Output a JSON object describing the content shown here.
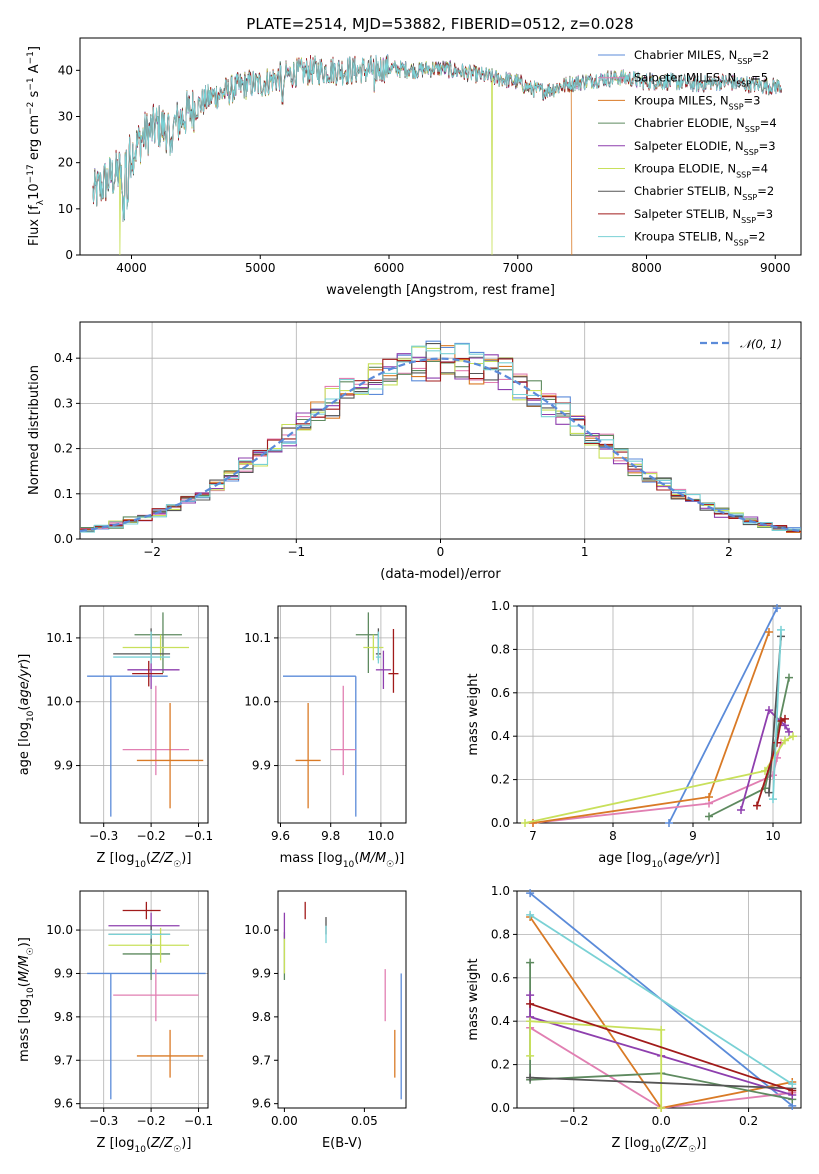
{
  "figure_title": "PLATE=2514, MJD=53882, FIBERID=0512, z=0.028",
  "colors": {
    "Chabrier MILES": "#5b8bd9",
    "Salpeter MILES": "#e17fb2",
    "Kroupa MILES": "#d97a26",
    "Chabrier ELODIE": "#5e8a5f",
    "Salpeter ELODIE": "#8e3fae",
    "Kroupa ELODIE": "#c8e05b",
    "Chabrier STELIB": "#555555",
    "Salpeter STELIB": "#a11b1b",
    "Kroupa STELIB": "#7ad1d5"
  },
  "chart_data": [
    {
      "id": "spectrum",
      "type": "line",
      "title": "PLATE=2514, MJD=53882, FIBERID=0512, z=0.028",
      "xlabel": "wavelength [Angstrom, rest frame]",
      "ylabel": "Flux [f_λ 10^-17 erg cm^-2 s^-1 A^-1]",
      "xlim": [
        3600,
        9200
      ],
      "ylim": [
        0,
        47
      ],
      "xticks": [
        4000,
        5000,
        6000,
        7000,
        8000,
        9000
      ],
      "yticks": [
        0,
        10,
        20,
        30,
        40
      ],
      "grid": false,
      "legend_position": "top-right",
      "continuum": {
        "x": [
          3700,
          3800,
          3900,
          4000,
          4100,
          4200,
          4300,
          4400,
          4500,
          4600,
          4700,
          4800,
          4900,
          5000,
          5200,
          5400,
          5600,
          5800,
          6000,
          6200,
          6400,
          6600,
          6800,
          7000,
          7100,
          7200,
          7400,
          7600,
          7800,
          8000,
          8200,
          8400,
          8600,
          8800,
          9000
        ],
        "y": [
          13,
          16,
          18,
          22,
          26,
          28,
          27,
          30,
          32,
          34,
          35,
          36,
          37,
          37,
          39,
          40,
          40,
          40,
          40.5,
          40,
          40.5,
          39.5,
          38.5,
          37.5,
          36,
          35.5,
          37,
          38,
          38.5,
          37.5,
          37.5,
          37,
          37.5,
          37,
          36.5
        ]
      },
      "series": [
        {
          "name": "Chabrier MILES, N_SSP=2",
          "label_main": "Chabrier MILES, N",
          "label_sub": "SSP",
          "label_end": "=2"
        },
        {
          "name": "Salpeter MILES, N_SSP=5",
          "label_main": "Salpeter MILES, N",
          "label_sub": "SSP",
          "label_end": "=5"
        },
        {
          "name": "Kroupa MILES, N_SSP=3",
          "label_main": "Kroupa MILES, N",
          "label_sub": "SSP",
          "label_end": "=3"
        },
        {
          "name": "Chabrier ELODIE, N_SSP=4",
          "label_main": "Chabrier ELODIE, N",
          "label_sub": "SSP",
          "label_end": "=4"
        },
        {
          "name": "Salpeter ELODIE, N_SSP=3",
          "label_main": "Salpeter ELODIE, N",
          "label_sub": "SSP",
          "label_end": "=3"
        },
        {
          "name": "Kroupa ELODIE, N_SSP=4",
          "label_main": "Kroupa ELODIE, N",
          "label_sub": "SSP",
          "label_end": "=4"
        },
        {
          "name": "Chabrier STELIB, N_SSP=2",
          "label_main": "Chabrier STELIB, N",
          "label_sub": "SSP",
          "label_end": "=2"
        },
        {
          "name": "Salpeter STELIB, N_SSP=3",
          "label_main": "Salpeter STELIB, N",
          "label_sub": "SSP",
          "label_end": "=3"
        },
        {
          "name": "Kroupa STELIB, N_SSP=2",
          "label_main": "Kroupa STELIB, N",
          "label_sub": "SSP",
          "label_end": "=2"
        }
      ],
      "dropouts": [
        {
          "model": "Kroupa ELODIE",
          "x": 3910
        },
        {
          "model": "Kroupa ELODIE",
          "x": 6800
        },
        {
          "model": "Kroupa MILES",
          "x": 7420
        }
      ]
    },
    {
      "id": "residuals",
      "type": "bar",
      "xlabel": "(data-model)/error",
      "ylabel": "Normed distribution",
      "xlim": [
        -2.5,
        2.5
      ],
      "ylim": [
        0,
        0.48
      ],
      "xticks": [
        -2,
        -1,
        0,
        1,
        2
      ],
      "yticks": [
        0.0,
        0.1,
        0.2,
        0.3,
        0.4
      ],
      "grid": true,
      "legend_position": "top-right",
      "reference": {
        "name": "𝒩(0, 1)",
        "mean": 0,
        "sigma": 1,
        "style": "dashed",
        "color": "#5b8bd9"
      },
      "bin_width": 0.1,
      "bin_start": -2.5
    },
    {
      "id": "age_vs_Z",
      "type": "scatter",
      "xlabel": "Z [log10(Z/Z☉)]",
      "ylabel": "age [log10(age/yr)]",
      "xlim": [
        -0.35,
        -0.08
      ],
      "ylim": [
        9.81,
        10.15
      ],
      "xticks": [
        -0.3,
        -0.2,
        -0.1
      ],
      "yticks": [
        9.9,
        10.0,
        10.1
      ],
      "grid": true,
      "points": [
        {
          "model": "Chabrier MILES",
          "x": -0.285,
          "y": 10.04,
          "xerr": [
            0.05,
            0.12
          ],
          "yerr": [
            0.22,
            0.0
          ]
        },
        {
          "model": "Salpeter MILES",
          "x": -0.19,
          "y": 9.925,
          "xerr": [
            0.07,
            0.07
          ],
          "yerr": [
            0.04,
            0.1
          ]
        },
        {
          "model": "Kroupa MILES",
          "x": -0.16,
          "y": 9.908,
          "xerr": [
            0.07,
            0.07
          ],
          "yerr": [
            0.075,
            0.09
          ]
        },
        {
          "model": "Chabrier ELODIE",
          "x": -0.175,
          "y": 10.105,
          "xerr": [
            0.06,
            0.04
          ],
          "yerr": [
            0.06,
            0.035
          ]
        },
        {
          "model": "Salpeter ELODIE",
          "x": -0.2,
          "y": 10.05,
          "xerr": [
            0.05,
            0.06
          ],
          "yerr": [
            0.03,
            0.03
          ]
        },
        {
          "model": "Kroupa ELODIE",
          "x": -0.18,
          "y": 10.085,
          "xerr": [
            0.08,
            0.06
          ],
          "yerr": [
            0.02,
            0.02
          ]
        },
        {
          "model": "Chabrier STELIB",
          "x": -0.2,
          "y": 10.075,
          "xerr": [
            0.08,
            0.04
          ],
          "yerr": [
            0.01,
            0.04
          ]
        },
        {
          "model": "Salpeter STELIB",
          "x": -0.205,
          "y": 10.044,
          "xerr": [
            0.035,
            0.03
          ],
          "yerr": [
            0.02,
            0.02
          ]
        },
        {
          "model": "Kroupa STELIB",
          "x": -0.2,
          "y": 10.07,
          "xerr": [
            0.08,
            0.04
          ],
          "yerr": [
            0.01,
            0.04
          ]
        }
      ]
    },
    {
      "id": "age_vs_mass",
      "type": "scatter",
      "xlabel": "mass [log10(M/M☉)]",
      "ylabel": "",
      "xlim": [
        9.59,
        10.1
      ],
      "ylim": [
        9.81,
        10.15
      ],
      "xticks": [
        9.6,
        9.8,
        10.0
      ],
      "yticks": [
        9.9,
        10.0,
        10.1
      ],
      "grid": true,
      "points": [
        {
          "model": "Chabrier MILES",
          "x": 9.9,
          "y": 10.04,
          "xerr": [
            0.29,
            0.0
          ],
          "yerr": [
            0.22,
            0.0
          ]
        },
        {
          "model": "Salpeter MILES",
          "x": 9.85,
          "y": 9.925,
          "xerr": [
            0.05,
            0.05
          ],
          "yerr": [
            0.04,
            0.1
          ]
        },
        {
          "model": "Kroupa MILES",
          "x": 9.71,
          "y": 9.908,
          "xerr": [
            0.05,
            0.05
          ],
          "yerr": [
            0.075,
            0.09
          ]
        },
        {
          "model": "Chabrier ELODIE",
          "x": 9.95,
          "y": 10.105,
          "xerr": [
            0.05,
            0.04
          ],
          "yerr": [
            0.06,
            0.035
          ]
        },
        {
          "model": "Salpeter ELODIE",
          "x": 10.01,
          "y": 10.05,
          "xerr": [
            0.03,
            0.03
          ],
          "yerr": [
            0.03,
            0.03
          ]
        },
        {
          "model": "Kroupa ELODIE",
          "x": 9.97,
          "y": 10.085,
          "xerr": [
            0.04,
            0.04
          ],
          "yerr": [
            0.02,
            0.02
          ]
        },
        {
          "model": "Chabrier STELIB",
          "x": 9.99,
          "y": 10.075,
          "xerr": [
            0.01,
            0.01
          ],
          "yerr": [
            0.01,
            0.04
          ]
        },
        {
          "model": "Salpeter STELIB",
          "x": 10.05,
          "y": 10.044,
          "xerr": [
            0.02,
            0.02
          ],
          "yerr": [
            0.03,
            0.07
          ]
        },
        {
          "model": "Kroupa STELIB",
          "x": 9.99,
          "y": 10.07,
          "xerr": [
            0.01,
            0.01
          ],
          "yerr": [
            0.01,
            0.04
          ]
        }
      ]
    },
    {
      "id": "weight_vs_age",
      "type": "line",
      "xlabel": "age [log10(age/yr)]",
      "ylabel": "mass weight",
      "xlim": [
        6.8,
        10.35
      ],
      "ylim": [
        0,
        1
      ],
      "xticks": [
        7,
        8,
        9,
        10
      ],
      "yticks": [
        0.0,
        0.2,
        0.4,
        0.6,
        0.8,
        1.0
      ],
      "grid": true,
      "series": [
        {
          "model": "Chabrier MILES",
          "x": [
            8.7,
            10.05
          ],
          "y": [
            0.0,
            0.99
          ]
        },
        {
          "model": "Salpeter MILES",
          "x": [
            7.0,
            9.2,
            10.0,
            10.05,
            10.1
          ],
          "y": [
            0.0,
            0.09,
            0.22,
            0.3,
            0.37
          ]
        },
        {
          "model": "Kroupa MILES",
          "x": [
            7.0,
            9.2,
            9.95
          ],
          "y": [
            0.0,
            0.12,
            0.88
          ]
        },
        {
          "model": "Chabrier ELODIE",
          "x": [
            9.2,
            9.9,
            10.2
          ],
          "y": [
            0.03,
            0.16,
            0.67
          ]
        },
        {
          "model": "Salpeter ELODIE",
          "x": [
            9.6,
            9.95,
            10.15,
            10.2
          ],
          "y": [
            0.06,
            0.52,
            0.45,
            0.42
          ]
        },
        {
          "model": "Kroupa ELODIE",
          "x": [
            6.9,
            9.9,
            10.15,
            10.25
          ],
          "y": [
            0.0,
            0.24,
            0.38,
            0.4
          ]
        },
        {
          "model": "Chabrier STELIB",
          "x": [
            9.95,
            10.1
          ],
          "y": [
            0.14,
            0.86
          ]
        },
        {
          "model": "Salpeter STELIB",
          "x": [
            9.8,
            10.05,
            10.1,
            10.15
          ],
          "y": [
            0.08,
            0.37,
            0.47,
            0.48
          ]
        },
        {
          "model": "Kroupa STELIB",
          "x": [
            10.0,
            10.1
          ],
          "y": [
            0.11,
            0.89
          ]
        }
      ]
    },
    {
      "id": "mass_vs_Z",
      "type": "scatter",
      "xlabel": "Z [log10(Z/Z☉)]",
      "ylabel": "mass [log10(M/M☉)]",
      "xlim": [
        -0.35,
        -0.08
      ],
      "ylim": [
        9.59,
        10.09
      ],
      "xticks": [
        -0.3,
        -0.2,
        -0.1
      ],
      "yticks": [
        9.6,
        9.7,
        9.8,
        9.9,
        10.0
      ],
      "grid": true,
      "points": [
        {
          "model": "Chabrier MILES",
          "x": -0.285,
          "y": 9.9,
          "xerr": [
            0.05,
            0.2
          ],
          "yerr": [
            0.29,
            0.0
          ]
        },
        {
          "model": "Salpeter MILES",
          "x": -0.19,
          "y": 9.85,
          "xerr": [
            0.09,
            0.09
          ],
          "yerr": [
            0.06,
            0.06
          ]
        },
        {
          "model": "Kroupa MILES",
          "x": -0.16,
          "y": 9.71,
          "xerr": [
            0.07,
            0.07
          ],
          "yerr": [
            0.05,
            0.06
          ]
        },
        {
          "model": "Chabrier ELODIE",
          "x": -0.2,
          "y": 9.945,
          "xerr": [
            0.06,
            0.04
          ],
          "yerr": [
            0.06,
            0.05
          ]
        },
        {
          "model": "Salpeter ELODIE",
          "x": -0.2,
          "y": 10.01,
          "xerr": [
            0.09,
            0.06
          ],
          "yerr": [
            0.03,
            0.03
          ]
        },
        {
          "model": "Kroupa ELODIE",
          "x": -0.18,
          "y": 9.965,
          "xerr": [
            0.11,
            0.06
          ],
          "yerr": [
            0.04,
            0.04
          ]
        },
        {
          "model": "Chabrier STELIB",
          "x": -0.2,
          "y": 9.99,
          "xerr": [
            0.09,
            0.04
          ],
          "yerr": [
            0.02,
            0.02
          ]
        },
        {
          "model": "Salpeter STELIB",
          "x": -0.21,
          "y": 10.045,
          "xerr": [
            0.05,
            0.03
          ],
          "yerr": [
            0.02,
            0.02
          ]
        },
        {
          "model": "Kroupa STELIB",
          "x": -0.2,
          "y": 9.99,
          "xerr": [
            0.09,
            0.04
          ],
          "yerr": [
            0.01,
            0.01
          ]
        }
      ]
    },
    {
      "id": "mass_vs_ebv",
      "type": "scatter",
      "xlabel": "E(B-V)",
      "ylabel": "",
      "xlim": [
        -0.004,
        0.076
      ],
      "ylim": [
        9.59,
        10.09
      ],
      "xticks": [
        0.0,
        0.05
      ],
      "yticks": [
        9.6,
        9.7,
        9.8,
        9.9,
        10.0
      ],
      "grid": false,
      "points": [
        {
          "model": "Chabrier MILES",
          "x": 0.073,
          "y": 9.9,
          "yerr": [
            0.29,
            0.0
          ]
        },
        {
          "model": "Salpeter MILES",
          "x": 0.063,
          "y": 9.85,
          "yerr": [
            0.06,
            0.06
          ]
        },
        {
          "model": "Kroupa MILES",
          "x": 0.069,
          "y": 9.71,
          "yerr": [
            0.05,
            0.06
          ]
        },
        {
          "model": "Chabrier ELODIE",
          "x": 0.0,
          "y": 9.945,
          "yerr": [
            0.06,
            0.05
          ]
        },
        {
          "model": "Salpeter ELODIE",
          "x": 0.0,
          "y": 10.01,
          "yerr": [
            0.03,
            0.03
          ]
        },
        {
          "model": "Kroupa ELODIE",
          "x": 0.0,
          "y": 9.94,
          "yerr": [
            0.04,
            0.04
          ]
        },
        {
          "model": "Chabrier STELIB",
          "x": 0.026,
          "y": 10.01,
          "yerr": [
            0.02,
            0.02
          ]
        },
        {
          "model": "Salpeter STELIB",
          "x": 0.013,
          "y": 10.045,
          "yerr": [
            0.02,
            0.02
          ]
        },
        {
          "model": "Kroupa STELIB",
          "x": 0.026,
          "y": 9.99,
          "yerr": [
            0.02,
            0.02
          ]
        }
      ]
    },
    {
      "id": "weight_vs_Z",
      "type": "line",
      "xlabel": "Z [log10(Z/Z☉)]",
      "ylabel": "mass weight",
      "xlim": [
        -0.33,
        0.32
      ],
      "ylim": [
        0,
        1
      ],
      "xticks": [
        -0.2,
        0.0,
        0.2
      ],
      "yticks": [
        0.0,
        0.2,
        0.4,
        0.6,
        0.8,
        1.0
      ],
      "grid": true,
      "series": [
        {
          "model": "Chabrier MILES",
          "x": [
            -0.3,
            0.3
          ],
          "y": [
            0.99,
            0.01
          ]
        },
        {
          "model": "Salpeter MILES",
          "x": [
            -0.3,
            0.0,
            0.3
          ],
          "y": [
            0.37,
            0.0,
            0.07
          ]
        },
        {
          "model": "Kroupa MILES",
          "x": [
            -0.3,
            0.0,
            0.3
          ],
          "y": [
            0.88,
            0.0,
            0.12
          ]
        },
        {
          "model": "Chabrier ELODIE",
          "x": [
            -0.3,
            -0.3,
            0.0,
            0.3
          ],
          "y": [
            0.67,
            0.13,
            0.16,
            0.04
          ]
        },
        {
          "model": "Salpeter ELODIE",
          "x": [
            -0.3,
            -0.3,
            0.0,
            0.3
          ],
          "y": [
            0.52,
            0.42,
            0.24,
            0.06
          ]
        },
        {
          "model": "Kroupa ELODIE",
          "x": [
            -0.3,
            -0.3,
            0.0,
            0.0
          ],
          "y": [
            0.24,
            0.4,
            0.36,
            0.0
          ]
        },
        {
          "model": "Chabrier STELIB",
          "x": [
            -0.3,
            0.3
          ],
          "y": [
            0.14,
            0.09
          ]
        },
        {
          "model": "Salpeter STELIB",
          "x": [
            -0.3,
            0.3
          ],
          "y": [
            0.48,
            0.08
          ]
        },
        {
          "model": "Kroupa STELIB",
          "x": [
            -0.3,
            0.3
          ],
          "y": [
            0.89,
            0.11
          ]
        }
      ]
    }
  ]
}
